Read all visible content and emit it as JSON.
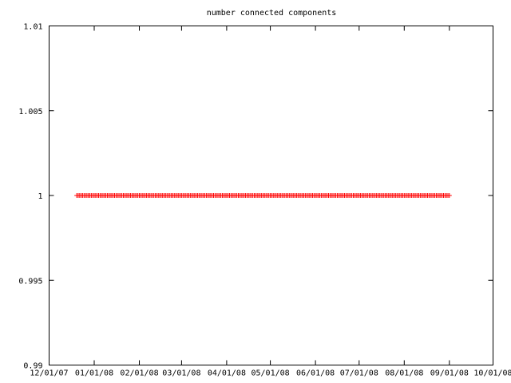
{
  "chart_data": {
    "type": "scatter",
    "title": "number connected components",
    "xlabel": "",
    "ylabel": "",
    "x_ticks": [
      "12/01/07",
      "01/01/08",
      "02/01/08",
      "03/01/08",
      "04/01/08",
      "05/01/08",
      "06/01/08",
      "07/01/08",
      "08/01/08",
      "09/01/08",
      "10/01/08"
    ],
    "x_range": [
      "12/01/07",
      "10/01/08"
    ],
    "y_ticks": [
      "0.99",
      "0.995",
      "1",
      "1.005",
      "1.01"
    ],
    "ylim": [
      0.99,
      1.01
    ],
    "grid": false,
    "legend": "none",
    "series": [
      {
        "color": "#ff0000",
        "marker": "plus",
        "x_start": "12/20/07",
        "x_end": "09/01/08",
        "points_per_day": 1,
        "y": 1
      }
    ]
  }
}
